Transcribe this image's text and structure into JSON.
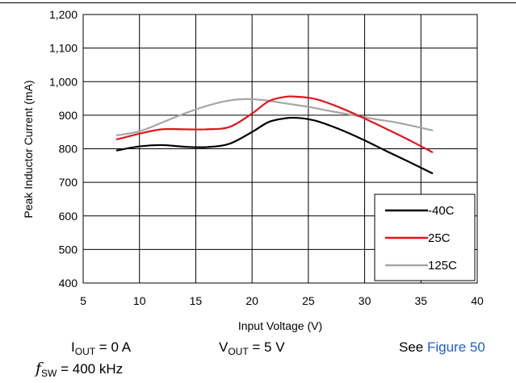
{
  "chart_data": {
    "type": "line",
    "xlabel": "Input Voltage (V)",
    "ylabel": "Peak Inductor Current (mA)",
    "xlim": [
      5,
      40
    ],
    "ylim": [
      400,
      1200
    ],
    "xticks": [
      5,
      10,
      15,
      20,
      25,
      30,
      35,
      40
    ],
    "yticks": [
      400,
      500,
      600,
      700,
      800,
      900,
      1000,
      1100,
      1200
    ],
    "ytick_labels": [
      "400",
      "500",
      "600",
      "700",
      "800",
      "900",
      "1,000",
      "1,100",
      "1,200"
    ],
    "grid": true,
    "legend_position": "bottom-right",
    "series": [
      {
        "name": "-40C",
        "color": "#000000",
        "x": [
          8,
          10,
          12,
          14,
          16,
          18,
          20,
          21.5,
          23,
          24,
          25,
          26,
          28,
          30,
          32,
          34,
          36
        ],
        "y": [
          795,
          807,
          811,
          806,
          805,
          815,
          850,
          880,
          891,
          892,
          888,
          880,
          855,
          825,
          792,
          760,
          727
        ]
      },
      {
        "name": "25C",
        "color": "#e3141b",
        "x": [
          8,
          10,
          12,
          14,
          16,
          18,
          20,
          21.5,
          23,
          24,
          25,
          26,
          28,
          30,
          32,
          34,
          36
        ],
        "y": [
          828,
          845,
          858,
          858,
          858,
          865,
          905,
          942,
          955,
          955,
          952,
          945,
          920,
          890,
          858,
          825,
          790
        ]
      },
      {
        "name": "125C",
        "color": "#a6a6a6",
        "x": [
          8,
          10,
          12,
          14,
          16,
          18,
          19.5,
          21,
          23,
          25,
          27,
          29,
          31,
          33,
          36
        ],
        "y": [
          840,
          852,
          878,
          905,
          928,
          944,
          948,
          945,
          935,
          925,
          912,
          900,
          888,
          877,
          855
        ]
      }
    ]
  },
  "conditions": {
    "iout_symbol": "I",
    "iout_sub": "OUT",
    "iout_value": " = 0 A",
    "vout_symbol": "V",
    "vout_sub": "OUT",
    "vout_value": " = 5 V",
    "see_text": "See ",
    "see_link": "Figure 50",
    "fsw_symbol": "f",
    "fsw_sub": "SW",
    "fsw_value": " = 400 kHz"
  }
}
